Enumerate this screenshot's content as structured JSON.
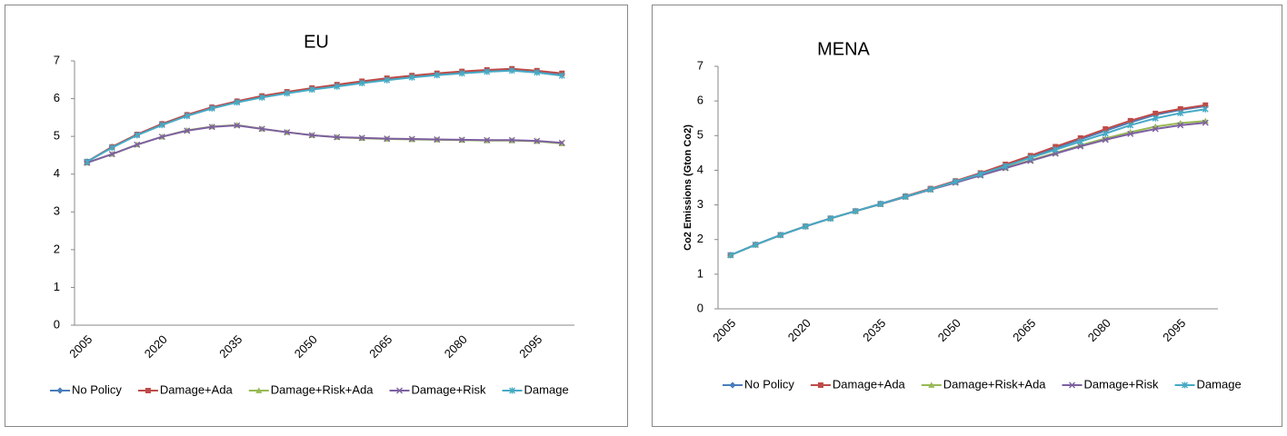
{
  "chart_data": [
    {
      "type": "line",
      "title": "EU",
      "categories": [
        2005,
        null,
        null,
        2020,
        null,
        null,
        2035,
        null,
        null,
        2050,
        null,
        null,
        2065,
        null,
        null,
        2080,
        null,
        null,
        2095,
        null
      ],
      "ylim": [
        0,
        7
      ],
      "yticks": [
        0,
        1,
        2,
        3,
        4,
        5,
        6,
        7
      ],
      "series": [
        {
          "name": "No Policy",
          "color": "#4a7ebb",
          "marker": "diamond",
          "values": [
            4.33,
            4.72,
            5.05,
            5.33,
            5.57,
            5.77,
            5.93,
            6.06,
            6.17,
            6.27,
            6.36,
            6.45,
            6.53,
            6.6,
            6.66,
            6.71,
            6.75,
            6.78,
            6.73,
            6.65
          ]
        },
        {
          "name": "Damage+Ada",
          "color": "#be4b48",
          "marker": "square",
          "values": [
            4.33,
            4.72,
            5.05,
            5.33,
            5.57,
            5.77,
            5.93,
            6.07,
            6.18,
            6.28,
            6.37,
            6.46,
            6.54,
            6.61,
            6.67,
            6.72,
            6.76,
            6.79,
            6.74,
            6.67
          ]
        },
        {
          "name": "Damage+Risk+Ada",
          "color": "#98b954",
          "marker": "triangle",
          "values": [
            4.3,
            4.53,
            4.78,
            4.99,
            5.16,
            5.26,
            5.3,
            5.2,
            5.11,
            5.03,
            4.98,
            4.95,
            4.93,
            4.92,
            4.91,
            4.9,
            4.89,
            4.89,
            4.87,
            4.81
          ]
        },
        {
          "name": "Damage+Risk",
          "color": "#7d60a0",
          "marker": "x",
          "values": [
            4.3,
            4.53,
            4.78,
            4.99,
            5.15,
            5.25,
            5.29,
            5.2,
            5.11,
            5.03,
            4.98,
            4.96,
            4.94,
            4.93,
            4.92,
            4.91,
            4.9,
            4.9,
            4.88,
            4.83
          ]
        },
        {
          "name": "Damage",
          "color": "#46aac5",
          "marker": "star",
          "values": [
            4.33,
            4.7,
            5.03,
            5.3,
            5.54,
            5.74,
            5.9,
            6.03,
            6.14,
            6.24,
            6.32,
            6.41,
            6.49,
            6.56,
            6.62,
            6.67,
            6.71,
            6.74,
            6.69,
            6.61
          ]
        }
      ]
    },
    {
      "type": "line",
      "title": "MENA",
      "ylabel": "Co2 Emissions (Gton Co2)",
      "categories": [
        2005,
        null,
        null,
        2020,
        null,
        null,
        2035,
        null,
        null,
        2050,
        null,
        null,
        2065,
        null,
        null,
        2080,
        null,
        null,
        2095,
        null
      ],
      "ylim": [
        0,
        7
      ],
      "yticks": [
        0,
        1,
        2,
        3,
        4,
        5,
        6,
        7
      ],
      "series": [
        {
          "name": "No Policy",
          "color": "#4a7ebb",
          "marker": "diamond",
          "values": [
            1.55,
            1.85,
            2.13,
            2.38,
            2.61,
            2.82,
            3.03,
            3.25,
            3.46,
            3.68,
            3.9,
            4.14,
            4.39,
            4.64,
            4.89,
            5.14,
            5.38,
            5.6,
            5.74,
            5.85
          ]
        },
        {
          "name": "Damage+Ada",
          "color": "#be4b48",
          "marker": "square",
          "values": [
            1.55,
            1.85,
            2.13,
            2.38,
            2.61,
            2.82,
            3.03,
            3.25,
            3.47,
            3.69,
            3.92,
            4.17,
            4.42,
            4.68,
            4.93,
            5.19,
            5.43,
            5.64,
            5.77,
            5.88
          ]
        },
        {
          "name": "Damage+Risk+Ada",
          "color": "#98b954",
          "marker": "triangle",
          "values": [
            1.55,
            1.85,
            2.13,
            2.38,
            2.61,
            2.82,
            3.02,
            3.23,
            3.44,
            3.65,
            3.86,
            4.07,
            4.29,
            4.5,
            4.72,
            4.92,
            5.1,
            5.26,
            5.36,
            5.42
          ]
        },
        {
          "name": "Damage+Risk",
          "color": "#7d60a0",
          "marker": "x",
          "values": [
            1.55,
            1.85,
            2.13,
            2.38,
            2.61,
            2.82,
            3.02,
            3.23,
            3.44,
            3.64,
            3.85,
            4.06,
            4.27,
            4.48,
            4.69,
            4.88,
            5.05,
            5.19,
            5.3,
            5.37
          ]
        },
        {
          "name": "Damage",
          "color": "#46aac5",
          "marker": "star",
          "values": [
            1.55,
            1.85,
            2.13,
            2.38,
            2.61,
            2.82,
            3.03,
            3.24,
            3.45,
            3.67,
            3.89,
            4.12,
            4.36,
            4.59,
            4.83,
            5.06,
            5.3,
            5.5,
            5.65,
            5.76
          ]
        }
      ]
    }
  ]
}
